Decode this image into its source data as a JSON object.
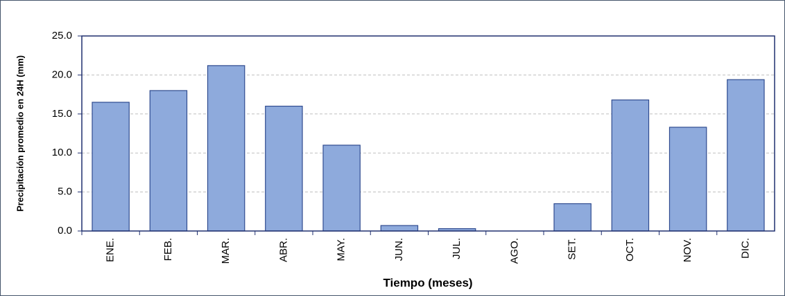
{
  "chart_data": {
    "type": "bar",
    "x_label": "Tiempo (meses)",
    "y_label": "Precipitación promedio en 24H (mm)",
    "categories": [
      "ENE.",
      "FEB.",
      "MAR.",
      "ABR.",
      "MAY.",
      "JUN.",
      "JUL.",
      "AGO.",
      "SET.",
      "OCT.",
      "NOV.",
      "DIC."
    ],
    "values": [
      16.5,
      18.0,
      21.2,
      16.0,
      11.0,
      0.7,
      0.3,
      0.0,
      3.5,
      16.8,
      13.3,
      19.4
    ],
    "color": "#8eaadc",
    "ylim": [
      0,
      25
    ],
    "yticks": [
      {
        "value": 0,
        "label": "0.0"
      },
      {
        "value": 5,
        "label": "5.0"
      },
      {
        "value": 10,
        "label": "10.0"
      },
      {
        "value": 15,
        "label": "15.0"
      },
      {
        "value": 20,
        "label": "20.0"
      },
      {
        "value": 25,
        "label": "25.0"
      }
    ],
    "grid": true
  }
}
